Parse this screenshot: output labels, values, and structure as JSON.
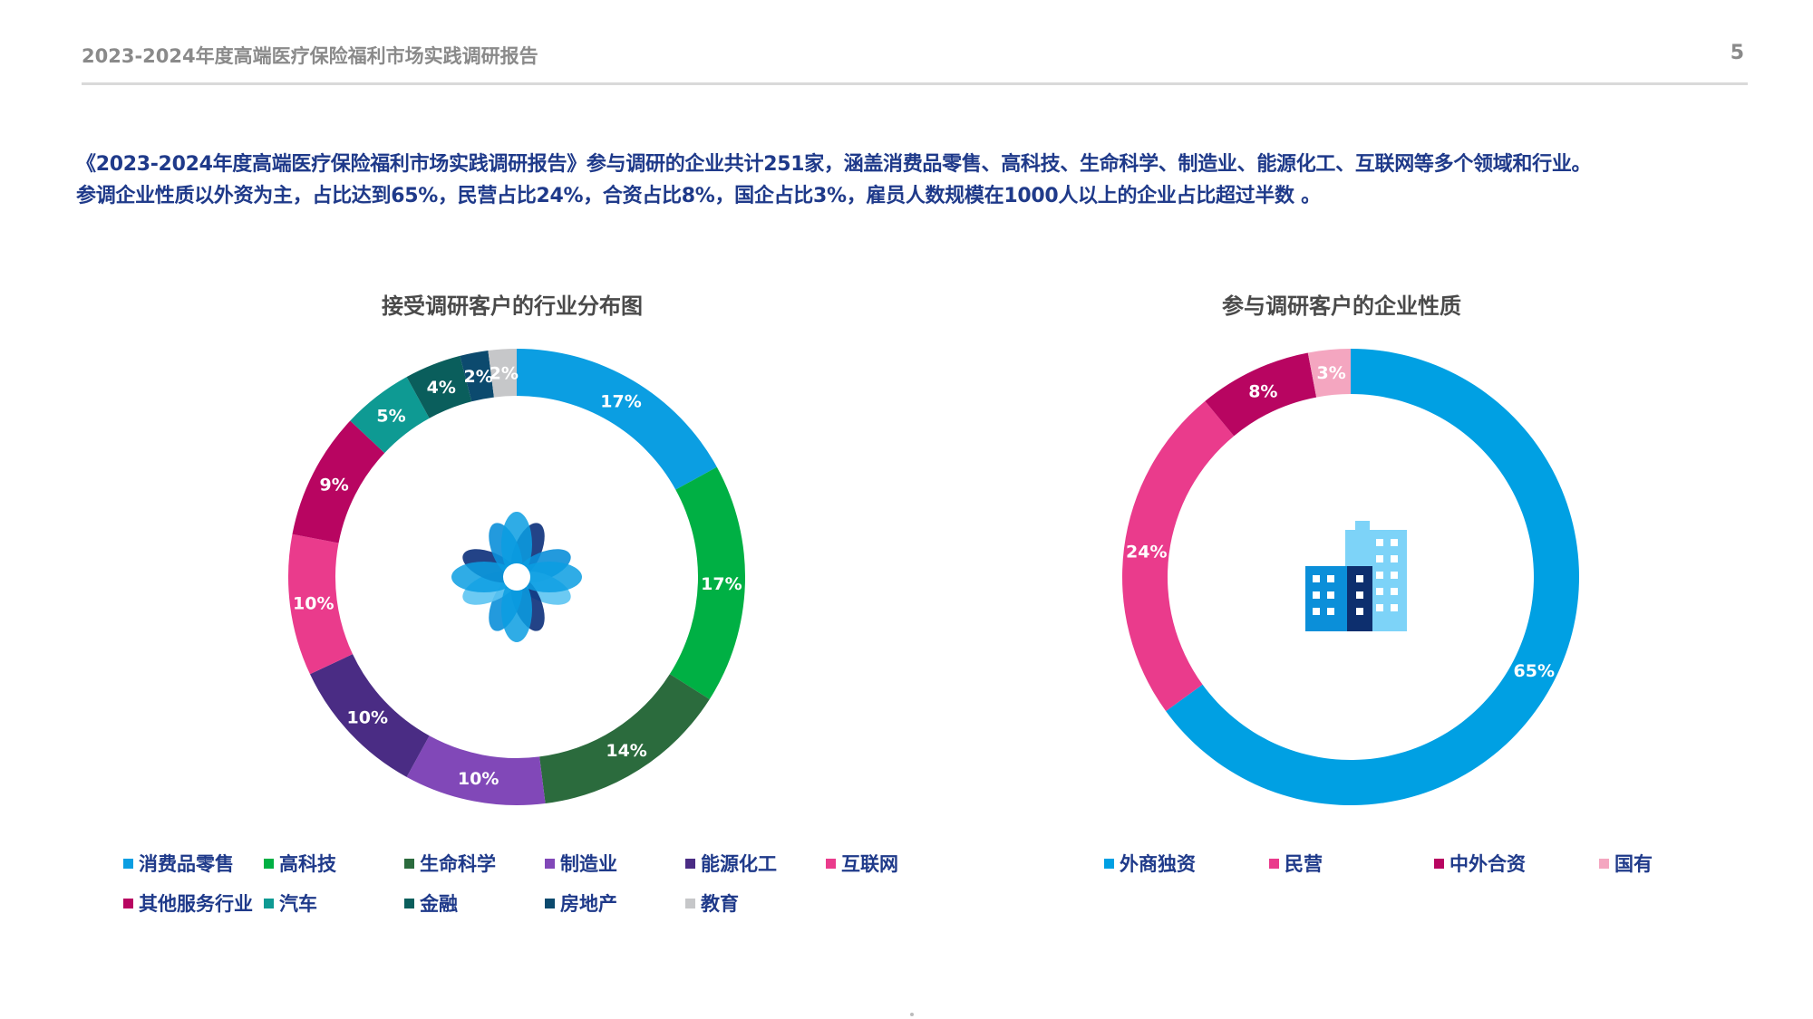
{
  "header": {
    "title": "2023-2024年度高端医疗保险福利市场实践调研报告",
    "page_number": "5"
  },
  "intro": {
    "line1": "《2023-2024年度高端医疗保险福利市场实践调研报告》参与调研的企业共计251家，涵盖消费品零售、高科技、生命科学、制造业、能源化工、互联网等多个领域和行业。",
    "line2": "参调企业性质以外资为主，占比达到65%，民营占比24%，合资占比8%，国企占比3%，雇员人数规模在1000人以上的企业占比超过半数 。"
  },
  "chart_data": [
    {
      "type": "pie",
      "donut": true,
      "title": "接受调研客户的行业分布图",
      "center_icon": "flower-icon",
      "legend_position": "bottom",
      "categories": [
        "消费品零售",
        "高科技",
        "生命科学",
        "制造业",
        "能源化工",
        "互联网",
        "其他服务行业",
        "汽车",
        "金融",
        "房地产",
        "教育"
      ],
      "values": [
        17,
        17,
        14,
        10,
        10,
        10,
        9,
        5,
        4,
        2,
        2
      ],
      "labels": [
        "17%",
        "17%",
        "14%",
        "10%",
        "10%",
        "10%",
        "9%",
        "5%",
        "4%",
        "2%",
        "2%"
      ],
      "colors": [
        "#0b9ee2",
        "#00b044",
        "#2b6b3d",
        "#8148b8",
        "#4a2c84",
        "#ea3b8c",
        "#b80561",
        "#0e9a93",
        "#0a5e5c",
        "#0c4a6e",
        "#c6c7c9"
      ]
    },
    {
      "type": "pie",
      "donut": true,
      "title": "参与调研客户的企业性质",
      "center_icon": "buildings-icon",
      "legend_position": "bottom",
      "categories": [
        "外商独资",
        "民营",
        "中外合资",
        "国有"
      ],
      "values": [
        65,
        24,
        8,
        3
      ],
      "labels": [
        "65%",
        "24%",
        "8%",
        "3%"
      ],
      "colors": [
        "#00a0e3",
        "#ea3b8c",
        "#b80561",
        "#f4a6c0"
      ]
    }
  ]
}
